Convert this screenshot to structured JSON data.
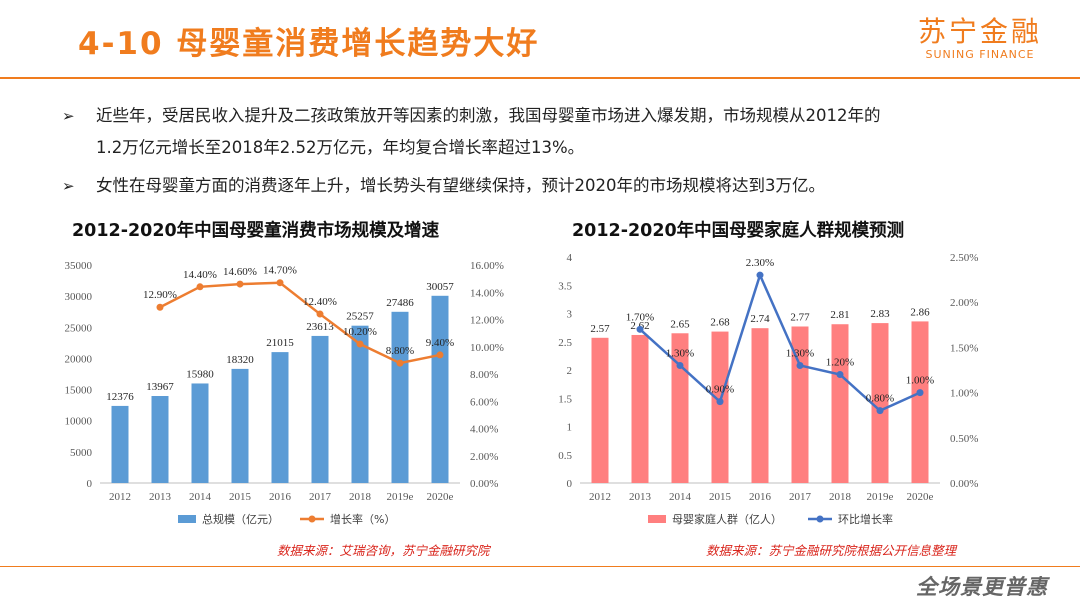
{
  "header": {
    "title": "4-10 母婴童消费增长趋势大好",
    "logo_cn": "苏宁金融",
    "logo_en": "SUNING FINANCE"
  },
  "bullets": [
    {
      "marker": "➢",
      "text": "近些年，受居民收入提升及二孩政策放开等因素的刺激，我国母婴童市场进入爆发期，市场规模从2012年的"
    },
    {
      "marker": "",
      "text": "1.2万亿元增长至2018年2.52万亿元，年均复合增长率超过13%。"
    },
    {
      "marker": "➢",
      "text": "女性在母婴童方面的消费逐年上升，增长势头有望继续保持，预计2020年的市场规模将达到3万亿。"
    }
  ],
  "colors": {
    "accent": "#f07c1e",
    "bar_blue": "#5b9bd5",
    "line_orange": "#ed7d31",
    "bar_red": "#ff7f7f",
    "line_blue": "#4472c4",
    "source_red": "#d9251c"
  },
  "chart_data": [
    {
      "type": "bar",
      "title": "2012-2020年中国母婴童消费市场规模及增速",
      "categories": [
        "2012",
        "2013",
        "2014",
        "2015",
        "2016",
        "2017",
        "2018",
        "2019e",
        "2020e"
      ],
      "series": [
        {
          "name": "总规模（亿元）",
          "type": "bar",
          "axis": "left",
          "values": [
            12376,
            13967,
            15980,
            18320,
            21015,
            23613,
            25257,
            27486,
            30057
          ],
          "labels": [
            "12376",
            "13967",
            "15980",
            "18320",
            "21015",
            "23613",
            "25257",
            "27486",
            "30057"
          ]
        },
        {
          "name": "增长率（%）",
          "type": "line",
          "axis": "right",
          "values": [
            null,
            12.9,
            14.4,
            14.6,
            14.7,
            12.4,
            10.2,
            8.8,
            9.4
          ],
          "labels": [
            "",
            "12.90%",
            "14.40%",
            "14.60%",
            "14.70%",
            "12.40%",
            "10.20%",
            "8.80%",
            "9.40%"
          ]
        }
      ],
      "ylim_left": [
        0,
        35000
      ],
      "ylim_right": [
        0,
        16
      ],
      "yticks_left": [
        "0",
        "5000",
        "10000",
        "15000",
        "20000",
        "25000",
        "30000",
        "35000"
      ],
      "yticks_right": [
        "0.00%",
        "2.00%",
        "4.00%",
        "6.00%",
        "8.00%",
        "10.00%",
        "12.00%",
        "14.00%",
        "16.00%"
      ],
      "legend_position": "bottom",
      "grid": false,
      "source": "数据来源：艾瑞咨询，苏宁金融研究院"
    },
    {
      "type": "bar",
      "title": "2012-2020年中国母婴家庭人群规模预测",
      "categories": [
        "2012",
        "2013",
        "2014",
        "2015",
        "2016",
        "2017",
        "2018",
        "2019e",
        "2020e"
      ],
      "series": [
        {
          "name": "母婴家庭人群（亿人）",
          "type": "bar",
          "axis": "left",
          "values": [
            2.57,
            2.62,
            2.65,
            2.68,
            2.74,
            2.77,
            2.81,
            2.83,
            2.86
          ],
          "labels": [
            "2.57",
            "2.62",
            "2.65",
            "2.68",
            "2.74",
            "2.77",
            "2.81",
            "2.83",
            "2.86"
          ]
        },
        {
          "name": "环比增长率",
          "type": "line",
          "axis": "right",
          "values": [
            null,
            1.7,
            1.3,
            0.9,
            2.3,
            1.3,
            1.2,
            0.8,
            1.0
          ],
          "labels": [
            "",
            "1.70%",
            "1.30%",
            "0.90%",
            "2.30%",
            "1.30%",
            "1.20%",
            "0.80%",
            "1.00%"
          ]
        }
      ],
      "ylim_left": [
        0,
        4
      ],
      "ylim_right": [
        0,
        2.5
      ],
      "yticks_left": [
        "0",
        "0.5",
        "1",
        "1.5",
        "2",
        "2.5",
        "3",
        "3.5",
        "4"
      ],
      "yticks_right": [
        "0.00%",
        "0.50%",
        "1.00%",
        "1.50%",
        "2.00%",
        "2.50%"
      ],
      "legend_position": "bottom",
      "grid": false,
      "source": "数据来源：苏宁金融研究院根据公开信息整理"
    }
  ],
  "footer": {
    "slogan": "全场景更普惠"
  }
}
